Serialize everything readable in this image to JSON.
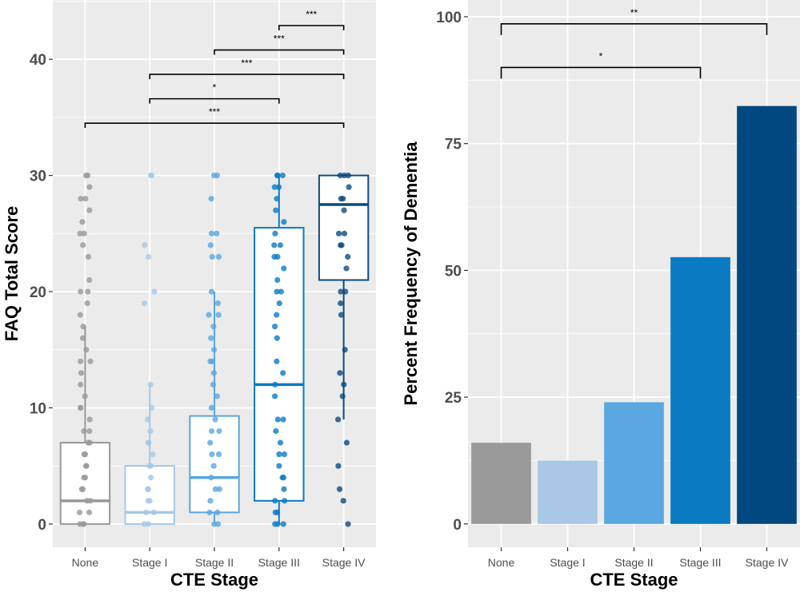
{
  "chart_data": [
    {
      "type": "boxplot",
      "xlabel": "CTE Stage",
      "ylabel": "FAQ Total Score",
      "categories": [
        "None",
        "Stage I",
        "Stage II",
        "Stage III",
        "Stage IV"
      ],
      "colors": [
        "#999999",
        "#a6c8e6",
        "#5aa6e0",
        "#0a7bc4",
        "#0b4a80"
      ],
      "ylim": [
        -2.0,
        45.1
      ],
      "yticks": [
        0,
        10,
        20,
        30,
        40
      ],
      "grid": true,
      "boxes": [
        {
          "q1": 0,
          "median": 2,
          "q3": 7,
          "whisker_low": 0,
          "whisker_high": 17
        },
        {
          "q1": 0,
          "median": 1,
          "q3": 5,
          "whisker_low": 0,
          "whisker_high": 12
        },
        {
          "q1": 1,
          "median": 4,
          "q3": 9.3,
          "whisker_low": 0,
          "whisker_high": 20
        },
        {
          "q1": 2,
          "median": 12,
          "q3": 25.5,
          "whisker_low": 0,
          "whisker_high": 30
        },
        {
          "q1": 21,
          "median": 27.5,
          "q3": 30,
          "whisker_low": 9,
          "whisker_high": 30
        }
      ],
      "points": [
        [
          30,
          30,
          29,
          28,
          28,
          27,
          26,
          25,
          25,
          24,
          23,
          21,
          20,
          20,
          19,
          18,
          17,
          16,
          15,
          14,
          14,
          13,
          12,
          11,
          10,
          10,
          9,
          8,
          8,
          7,
          7,
          6,
          6,
          5,
          5,
          4,
          4,
          3,
          3,
          2,
          2,
          1,
          1,
          0,
          0,
          0
        ],
        [
          30,
          30,
          24,
          23,
          20,
          19,
          12,
          10,
          9,
          8,
          7,
          7,
          6,
          5,
          5,
          4,
          3,
          3,
          2,
          2,
          1,
          1,
          0,
          0
        ],
        [
          30,
          30,
          28,
          25,
          25,
          24,
          23,
          23,
          20,
          19,
          18,
          18,
          17,
          16,
          15,
          14,
          14,
          13,
          12,
          11,
          10,
          9,
          8,
          8,
          7,
          6,
          6,
          5,
          4,
          3,
          3,
          2,
          1,
          1,
          0,
          0
        ],
        [
          30,
          30,
          30,
          29,
          29,
          28,
          27,
          26,
          25,
          24,
          24,
          23,
          23,
          22,
          21,
          20,
          20,
          19,
          18,
          17,
          16,
          14,
          13,
          12,
          11,
          9,
          9,
          8,
          7,
          6,
          6,
          5,
          4,
          4,
          3,
          2,
          2,
          1,
          1,
          0,
          0,
          0
        ],
        [
          30,
          30,
          30,
          29,
          28,
          28,
          27,
          25,
          25,
          24,
          24,
          23,
          22,
          20,
          20,
          19,
          18,
          15,
          13,
          12,
          11,
          9,
          7,
          5,
          3,
          2,
          0
        ]
      ],
      "comparisons": [
        {
          "from": "None",
          "to": "Stage IV",
          "y": 34.5,
          "label": "***"
        },
        {
          "from": "Stage I",
          "to": "Stage III",
          "y": 36.6,
          "label": "*"
        },
        {
          "from": "Stage I",
          "to": "Stage IV",
          "y": 38.7,
          "label": "***"
        },
        {
          "from": "Stage II",
          "to": "Stage IV",
          "y": 40.8,
          "label": "***"
        },
        {
          "from": "Stage III",
          "to": "Stage IV",
          "y": 42.9,
          "label": "***"
        }
      ]
    },
    {
      "type": "bar",
      "xlabel": "CTE Stage",
      "ylabel": "Percent Frequency of Dementia",
      "categories": [
        "None",
        "Stage I",
        "Stage II",
        "Stage III",
        "Stage IV"
      ],
      "values": [
        16,
        12.5,
        24,
        52.6,
        82.4
      ],
      "colors": [
        "#9a9a9a",
        "#a9c8e6",
        "#5aa7e1",
        "#0a7ac2",
        "#024880"
      ],
      "ylim": [
        -4.6,
        103.3
      ],
      "yticks": [
        0,
        25,
        50,
        75,
        100
      ],
      "grid": true,
      "comparisons": [
        {
          "from": "None",
          "to": "Stage III",
          "y": 90,
          "label": "*"
        },
        {
          "from": "None",
          "to": "Stage IV",
          "y": 98.6,
          "label": "**"
        }
      ]
    }
  ]
}
